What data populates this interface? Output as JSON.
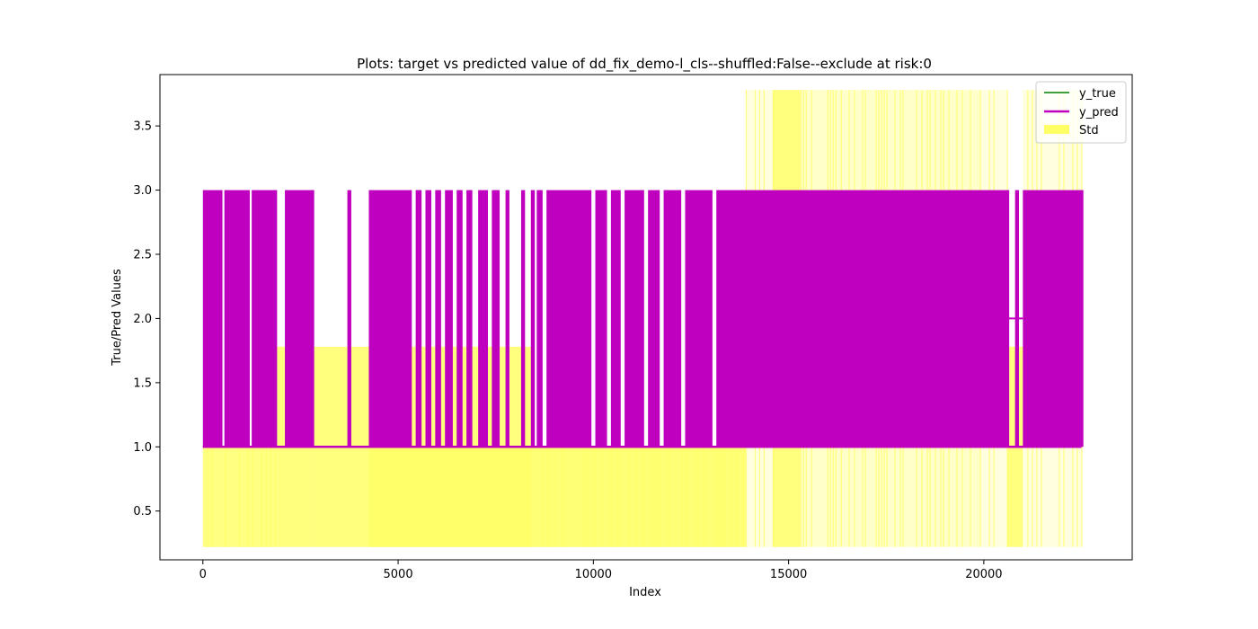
{
  "chart_data": {
    "type": "line",
    "title": "Plots: target vs predicted value of dd_fix_demo-l_cls--shuffled:False--exclude at risk:0",
    "xlabel": "Index",
    "ylabel": "True/Pred Values",
    "xlim": [
      -1100,
      23800
    ],
    "ylim": [
      0.12,
      3.9
    ],
    "xticks": [
      0,
      5000,
      10000,
      15000,
      20000
    ],
    "xtick_labels": [
      "0",
      "5000",
      "10000",
      "15000",
      "20000"
    ],
    "yticks": [
      0.5,
      1.0,
      1.5,
      2.0,
      2.5,
      3.0,
      3.5
    ],
    "ytick_labels": [
      "0.5",
      "1.0",
      "1.5",
      "2.0",
      "2.5",
      "3.0",
      "3.5"
    ],
    "grid": false,
    "legend_position": "top-right",
    "series": [
      {
        "name": "y_true",
        "kind": "line",
        "color": "#008000",
        "x_range": [
          0,
          22500
        ],
        "levels": [
          1,
          2,
          3
        ]
      },
      {
        "name": "y_pred",
        "kind": "line",
        "color": "#bf00bf",
        "x_range": [
          0,
          22500
        ],
        "low": 1.0,
        "high": 3.0,
        "baseline": 1.0,
        "segment_at_2": [
          20600,
          21000
        ],
        "dense_spans": [
          [
            0,
            500
          ],
          [
            550,
            1200
          ],
          [
            1250,
            1900
          ],
          [
            2100,
            2850
          ],
          [
            3700,
            3800
          ],
          [
            4250,
            5350
          ],
          [
            5450,
            5600
          ],
          [
            5700,
            5850
          ],
          [
            5950,
            6100
          ],
          [
            6200,
            6400
          ],
          [
            6500,
            6650
          ],
          [
            6750,
            6900
          ],
          [
            7050,
            7300
          ],
          [
            7400,
            7600
          ],
          [
            7750,
            7850
          ],
          [
            8150,
            8250
          ],
          [
            8400,
            8500
          ],
          [
            8550,
            8700
          ],
          [
            8800,
            9950
          ],
          [
            10050,
            10350
          ],
          [
            10450,
            10700
          ],
          [
            10800,
            11300
          ],
          [
            11400,
            11700
          ],
          [
            11800,
            12250
          ],
          [
            12350,
            13050
          ],
          [
            13150,
            20650
          ],
          [
            20800,
            20900
          ],
          [
            21000,
            22550
          ]
        ]
      },
      {
        "name": "Std",
        "kind": "fill",
        "color": "#ffff00",
        "alpha": 0.5,
        "bands": [
          {
            "x": [
              0,
              1900
            ],
            "low": 0.22,
            "high": 1.0,
            "density": "light"
          },
          {
            "x": [
              1900,
              2850
            ],
            "low": 0.22,
            "high": 1.78,
            "density": "solid"
          },
          {
            "x": [
              2850,
              4250
            ],
            "low": 0.22,
            "high": 1.78,
            "density": "solid"
          },
          {
            "x": [
              4250,
              8400
            ],
            "low": 0.22,
            "high": 1.78,
            "density": "solid"
          },
          {
            "x": [
              8400,
              13900
            ],
            "low": 0.22,
            "high": 1.0,
            "density": "medium"
          },
          {
            "x": [
              13900,
              14600
            ],
            "low": 0.22,
            "high": 3.78,
            "density": "sparse"
          },
          {
            "x": [
              14600,
              15300
            ],
            "low": 0.22,
            "high": 3.78,
            "density": "solid"
          },
          {
            "x": [
              15300,
              16400
            ],
            "low": 0.22,
            "high": 3.78,
            "density": "medium"
          },
          {
            "x": [
              16400,
              19900
            ],
            "low": 0.22,
            "high": 3.78,
            "density": "medium"
          },
          {
            "x": [
              19900,
              20600
            ],
            "low": 0.22,
            "high": 3.78,
            "density": "sparse"
          },
          {
            "x": [
              20600,
              21000
            ],
            "low": 0.22,
            "high": 1.78,
            "density": "solid"
          },
          {
            "x": [
              21000,
              22500
            ],
            "low": 0.22,
            "high": 3.78,
            "density": "sparse"
          }
        ]
      }
    ]
  },
  "legend": {
    "items": [
      {
        "label": "y_true",
        "color": "#008000",
        "kind": "line"
      },
      {
        "label": "y_pred",
        "color": "#bf00bf",
        "kind": "line"
      },
      {
        "label": "Std",
        "color": "#ffff66",
        "kind": "patch"
      }
    ]
  }
}
